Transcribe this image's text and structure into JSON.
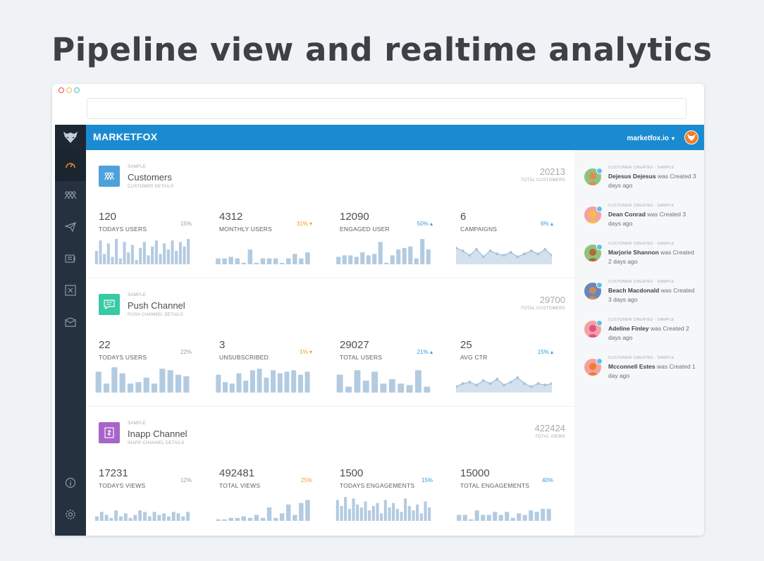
{
  "headline": "Pipeline view and realtime analytics",
  "colors": {
    "topbar": "#1a8bd0",
    "sidebar": "#25313f",
    "bars": "#b3cbe0",
    "up": "#3a9ad9",
    "warn": "#f0a020"
  },
  "browser": {
    "dot_colors": [
      "#f04b4b",
      "#f5b83a",
      "#3ec8c8"
    ]
  },
  "topbar": {
    "brand": "MARKETFOX",
    "account": "marketfox.io",
    "account_caret": "▾"
  },
  "sidebar": {
    "icons": [
      "dashboard-icon",
      "customers-icon",
      "campaigns-icon",
      "push-icon",
      "inapp-icon",
      "inbox-icon",
      "info-icon",
      "settings-icon"
    ]
  },
  "sections": [
    {
      "small": "SAMPLE",
      "title": "Customers",
      "subtitle": "CUSTOMER DETAILS",
      "total": "20213",
      "total_label": "TOTAL CUSTOMERS",
      "icon_color": "#4ea1d9",
      "metrics": [
        {
          "value": "120",
          "label": "TODAYS USERS",
          "pct": "15%",
          "trend": "neutral",
          "chart": {
            "type": "bar",
            "values": [
              18,
              32,
              14,
              28,
              10,
              34,
              8,
              30,
              16,
              26,
              6,
              22,
              30,
              12,
              24,
              32,
              14,
              28,
              20,
              32,
              18,
              30,
              24,
              34
            ]
          }
        },
        {
          "value": "4312",
          "label": "MONTHLY USERS",
          "pct": "31% ▾",
          "trend": "warn",
          "chart": {
            "type": "bar",
            "values": [
              8,
              8,
              10,
              8,
              2,
              20,
              2,
              8,
              8,
              8,
              2,
              8,
              14,
              8,
              16
            ]
          }
        },
        {
          "value": "12090",
          "label": "ENGAGED USER",
          "pct": "50% ▴",
          "trend": "up",
          "chart": {
            "type": "bar",
            "values": [
              10,
              12,
              12,
              10,
              16,
              12,
              14,
              30,
              2,
              12,
              20,
              22,
              24,
              8,
              34,
              20
            ]
          }
        },
        {
          "value": "6",
          "label": "CAMPAIGNS",
          "pct": "6% ▴",
          "trend": "up",
          "chart": {
            "type": "area",
            "values": [
              22,
              18,
              12,
              20,
              10,
              18,
              14,
              12,
              16,
              10,
              14,
              18,
              14,
              20,
              12
            ]
          }
        }
      ]
    },
    {
      "small": "SAMPLE",
      "title": "Push Channel",
      "subtitle": "PUSH CHANNEL DETAILS",
      "total": "29700",
      "total_label": "TOTAL CUSTOMERS",
      "icon_color": "#39c9a4",
      "metrics": [
        {
          "value": "22",
          "label": "TODAYS USERS",
          "pct": "22%",
          "trend": "neutral",
          "chart": {
            "type": "bar",
            "values": [
              28,
              12,
              34,
              26,
              12,
              14,
              20,
              12,
              32,
              30,
              24,
              22
            ]
          }
        },
        {
          "value": "3",
          "label": "UNSUBSCRIBED",
          "pct": "1% ▾",
          "trend": "warn",
          "chart": {
            "type": "bar",
            "values": [
              24,
              14,
              12,
              26,
              16,
              30,
              32,
              20,
              30,
              26,
              28,
              30,
              24,
              28
            ]
          }
        },
        {
          "value": "29027",
          "label": "TOTAL USERS",
          "pct": "21% ▴",
          "trend": "up",
          "chart": {
            "type": "bar",
            "values": [
              24,
              8,
              30,
              16,
              28,
              12,
              18,
              12,
              10,
              30,
              8
            ]
          }
        },
        {
          "value": "25",
          "label": "AVG CTR",
          "pct": "15% ▴",
          "trend": "up",
          "chart": {
            "type": "area",
            "values": [
              8,
              12,
              14,
              10,
              16,
              12,
              18,
              10,
              14,
              20,
              12,
              8,
              12,
              10,
              12
            ]
          }
        }
      ]
    },
    {
      "small": "SAMPLE",
      "title": "Inapp Channel",
      "subtitle": "INAPP CHANNEL DETAILS",
      "total": "422424",
      "total_label": "TOTAL VIEWS",
      "icon_color": "#a865c9",
      "metrics": [
        {
          "value": "17231",
          "label": "TODAYS VIEWS",
          "pct": "12%",
          "trend": "neutral",
          "chart": {
            "type": "bar",
            "values": [
              6,
              12,
              8,
              4,
              14,
              6,
              10,
              4,
              8,
              14,
              12,
              6,
              12,
              8,
              10,
              6,
              12,
              10,
              6,
              12
            ]
          }
        },
        {
          "value": "492481",
          "label": "TOTAL VIEWS",
          "pct": "25%",
          "trend": "warn",
          "chart": {
            "type": "bar",
            "values": [
              2,
              2,
              4,
              4,
              6,
              4,
              8,
              4,
              18,
              4,
              10,
              22,
              8,
              24,
              28
            ]
          }
        },
        {
          "value": "1500",
          "label": "TODAYS ENGAGEMENTS",
          "pct": "15%",
          "trend": "up",
          "chart": {
            "type": "bar",
            "values": [
              28,
              20,
              32,
              16,
              30,
              22,
              18,
              26,
              14,
              20,
              24,
              10,
              28,
              18,
              24,
              16,
              12,
              30,
              20,
              14,
              22,
              10,
              26,
              18
            ]
          }
        },
        {
          "value": "15000",
          "label": "TOTAL ENGAGEMENTS",
          "pct": "40%",
          "trend": "up",
          "chart": {
            "type": "bar",
            "values": [
              8,
              8,
              2,
              14,
              8,
              8,
              12,
              8,
              12,
              4,
              10,
              8,
              14,
              12,
              16,
              16
            ]
          }
        }
      ]
    }
  ],
  "feed": [
    {
      "tag": "CUSTOMER CREATED - SAMPLE",
      "name": "Dejesus Dejesus",
      "rest": " was Created 3 days ago",
      "avatar_bg": "#8fc37a",
      "avatar_fg": "#e08b5a"
    },
    {
      "tag": "CUSTOMER CREATED - SAMPLE",
      "name": "Dean Conrad",
      "rest": " was Created 3 days ago",
      "avatar_bg": "#f4a1a1",
      "avatar_fg": "#f2c23a"
    },
    {
      "tag": "CUSTOMER CREATED - SAMPLE",
      "name": "Marjorie Shannon",
      "rest": " was Created 2 days ago",
      "avatar_bg": "#8fc37a",
      "avatar_fg": "#b06a3a"
    },
    {
      "tag": "CUSTOMER CREATED - SAMPLE",
      "name": "Beach Macdonald",
      "rest": " was Created 3 days ago",
      "avatar_bg": "#6a86b8",
      "avatar_fg": "#c98a5a"
    },
    {
      "tag": "CUSTOMER CREATED - SAMPLE",
      "name": "Adeline Finley",
      "rest": " was Created 2 days ago",
      "avatar_bg": "#f4a1a1",
      "avatar_fg": "#e0528a"
    },
    {
      "tag": "CUSTOMER CREATED - SAMPLE",
      "name": "Mcconnell Estes",
      "rest": " was Created 1 day ago",
      "avatar_bg": "#f4a1a1",
      "avatar_fg": "#f07e2a"
    }
  ]
}
